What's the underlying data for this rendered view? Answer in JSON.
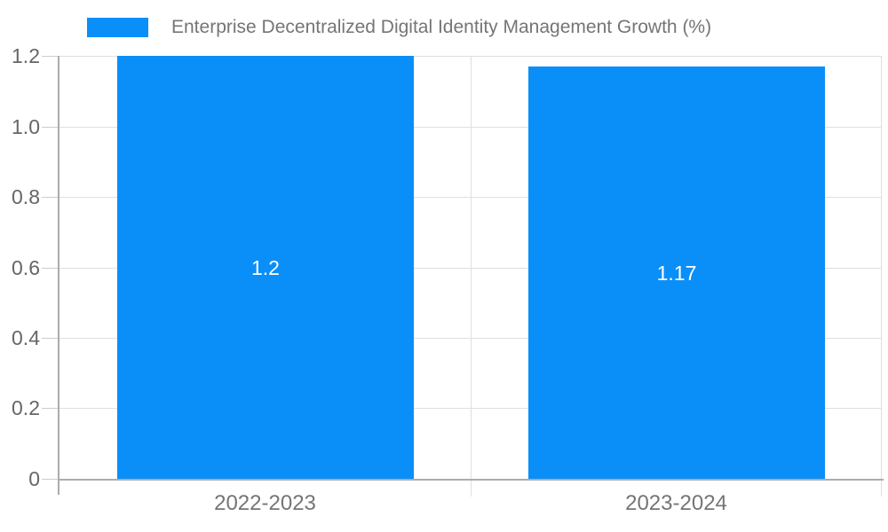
{
  "chart_data": {
    "type": "bar",
    "title": "Enterprise Decentralized Digital Identity Management Growth (%)",
    "categories": [
      "2022-2023",
      "2023-2024"
    ],
    "series": [
      {
        "name": "Enterprise Decentralized Digital Identity Management Growth (%)",
        "values": [
          1.2,
          1.17
        ]
      }
    ],
    "bar_value_labels": [
      "1.2",
      "1.17"
    ],
    "y_ticks": [
      "0",
      "0.2",
      "0.4",
      "0.6",
      "0.8",
      "1.0",
      "1.2"
    ],
    "ylim": [
      0,
      1.2
    ],
    "xlabel": "",
    "ylabel": "",
    "grid": true,
    "legend_position": "top-center",
    "colors": {
      "bar": "#0A8FF8",
      "axis": "#ACACAC",
      "gridline": "#DFDFDF",
      "tick_mark": "#CCCCCC",
      "y_tick_label": "#666666",
      "category_label": "#757575",
      "legend_text": "#757575",
      "bar_label": "#FFFFFF",
      "background": "#FFFFFF"
    }
  }
}
